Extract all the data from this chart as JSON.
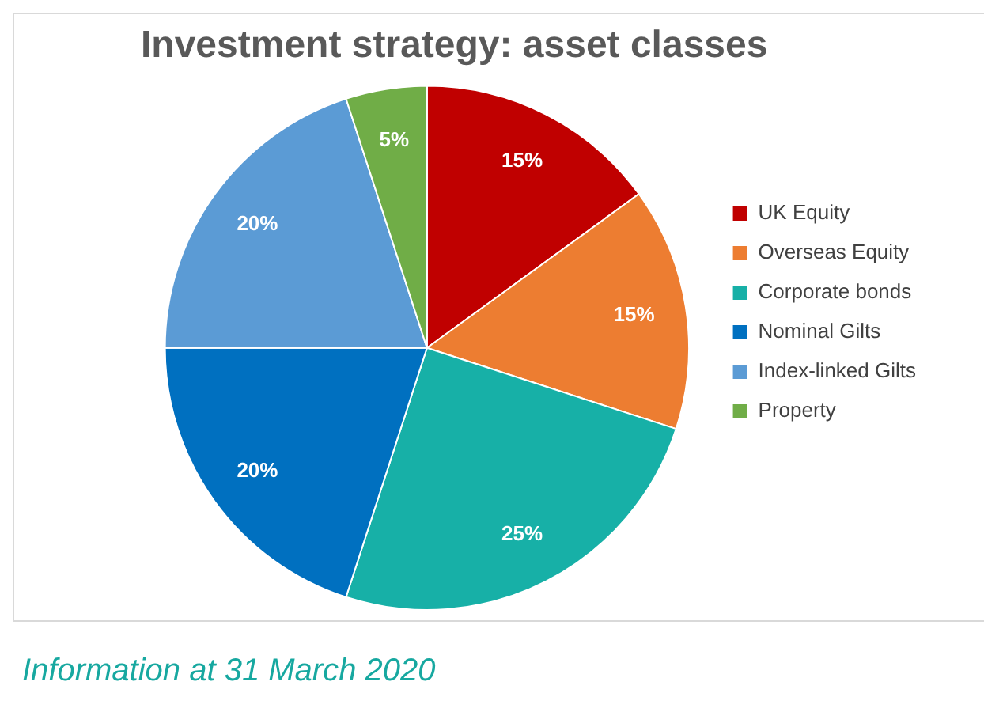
{
  "chart_data": {
    "type": "pie",
    "title": "Investment strategy: asset classes",
    "categories": [
      "UK Equity",
      "Overseas Equity",
      "Corporate bonds",
      "Nominal Gilts",
      "Index-linked Gilts",
      "Property"
    ],
    "values": [
      15,
      15,
      25,
      20,
      20,
      5
    ],
    "colors": [
      "#c00000",
      "#ed7d31",
      "#17b0a7",
      "#0070c0",
      "#5b9bd5",
      "#70ad47"
    ],
    "value_labels": [
      "15%",
      "15%",
      "25%",
      "20%",
      "20%",
      "5%"
    ],
    "legend": "right",
    "annotations": [
      "Information at 31 March 2020"
    ]
  }
}
